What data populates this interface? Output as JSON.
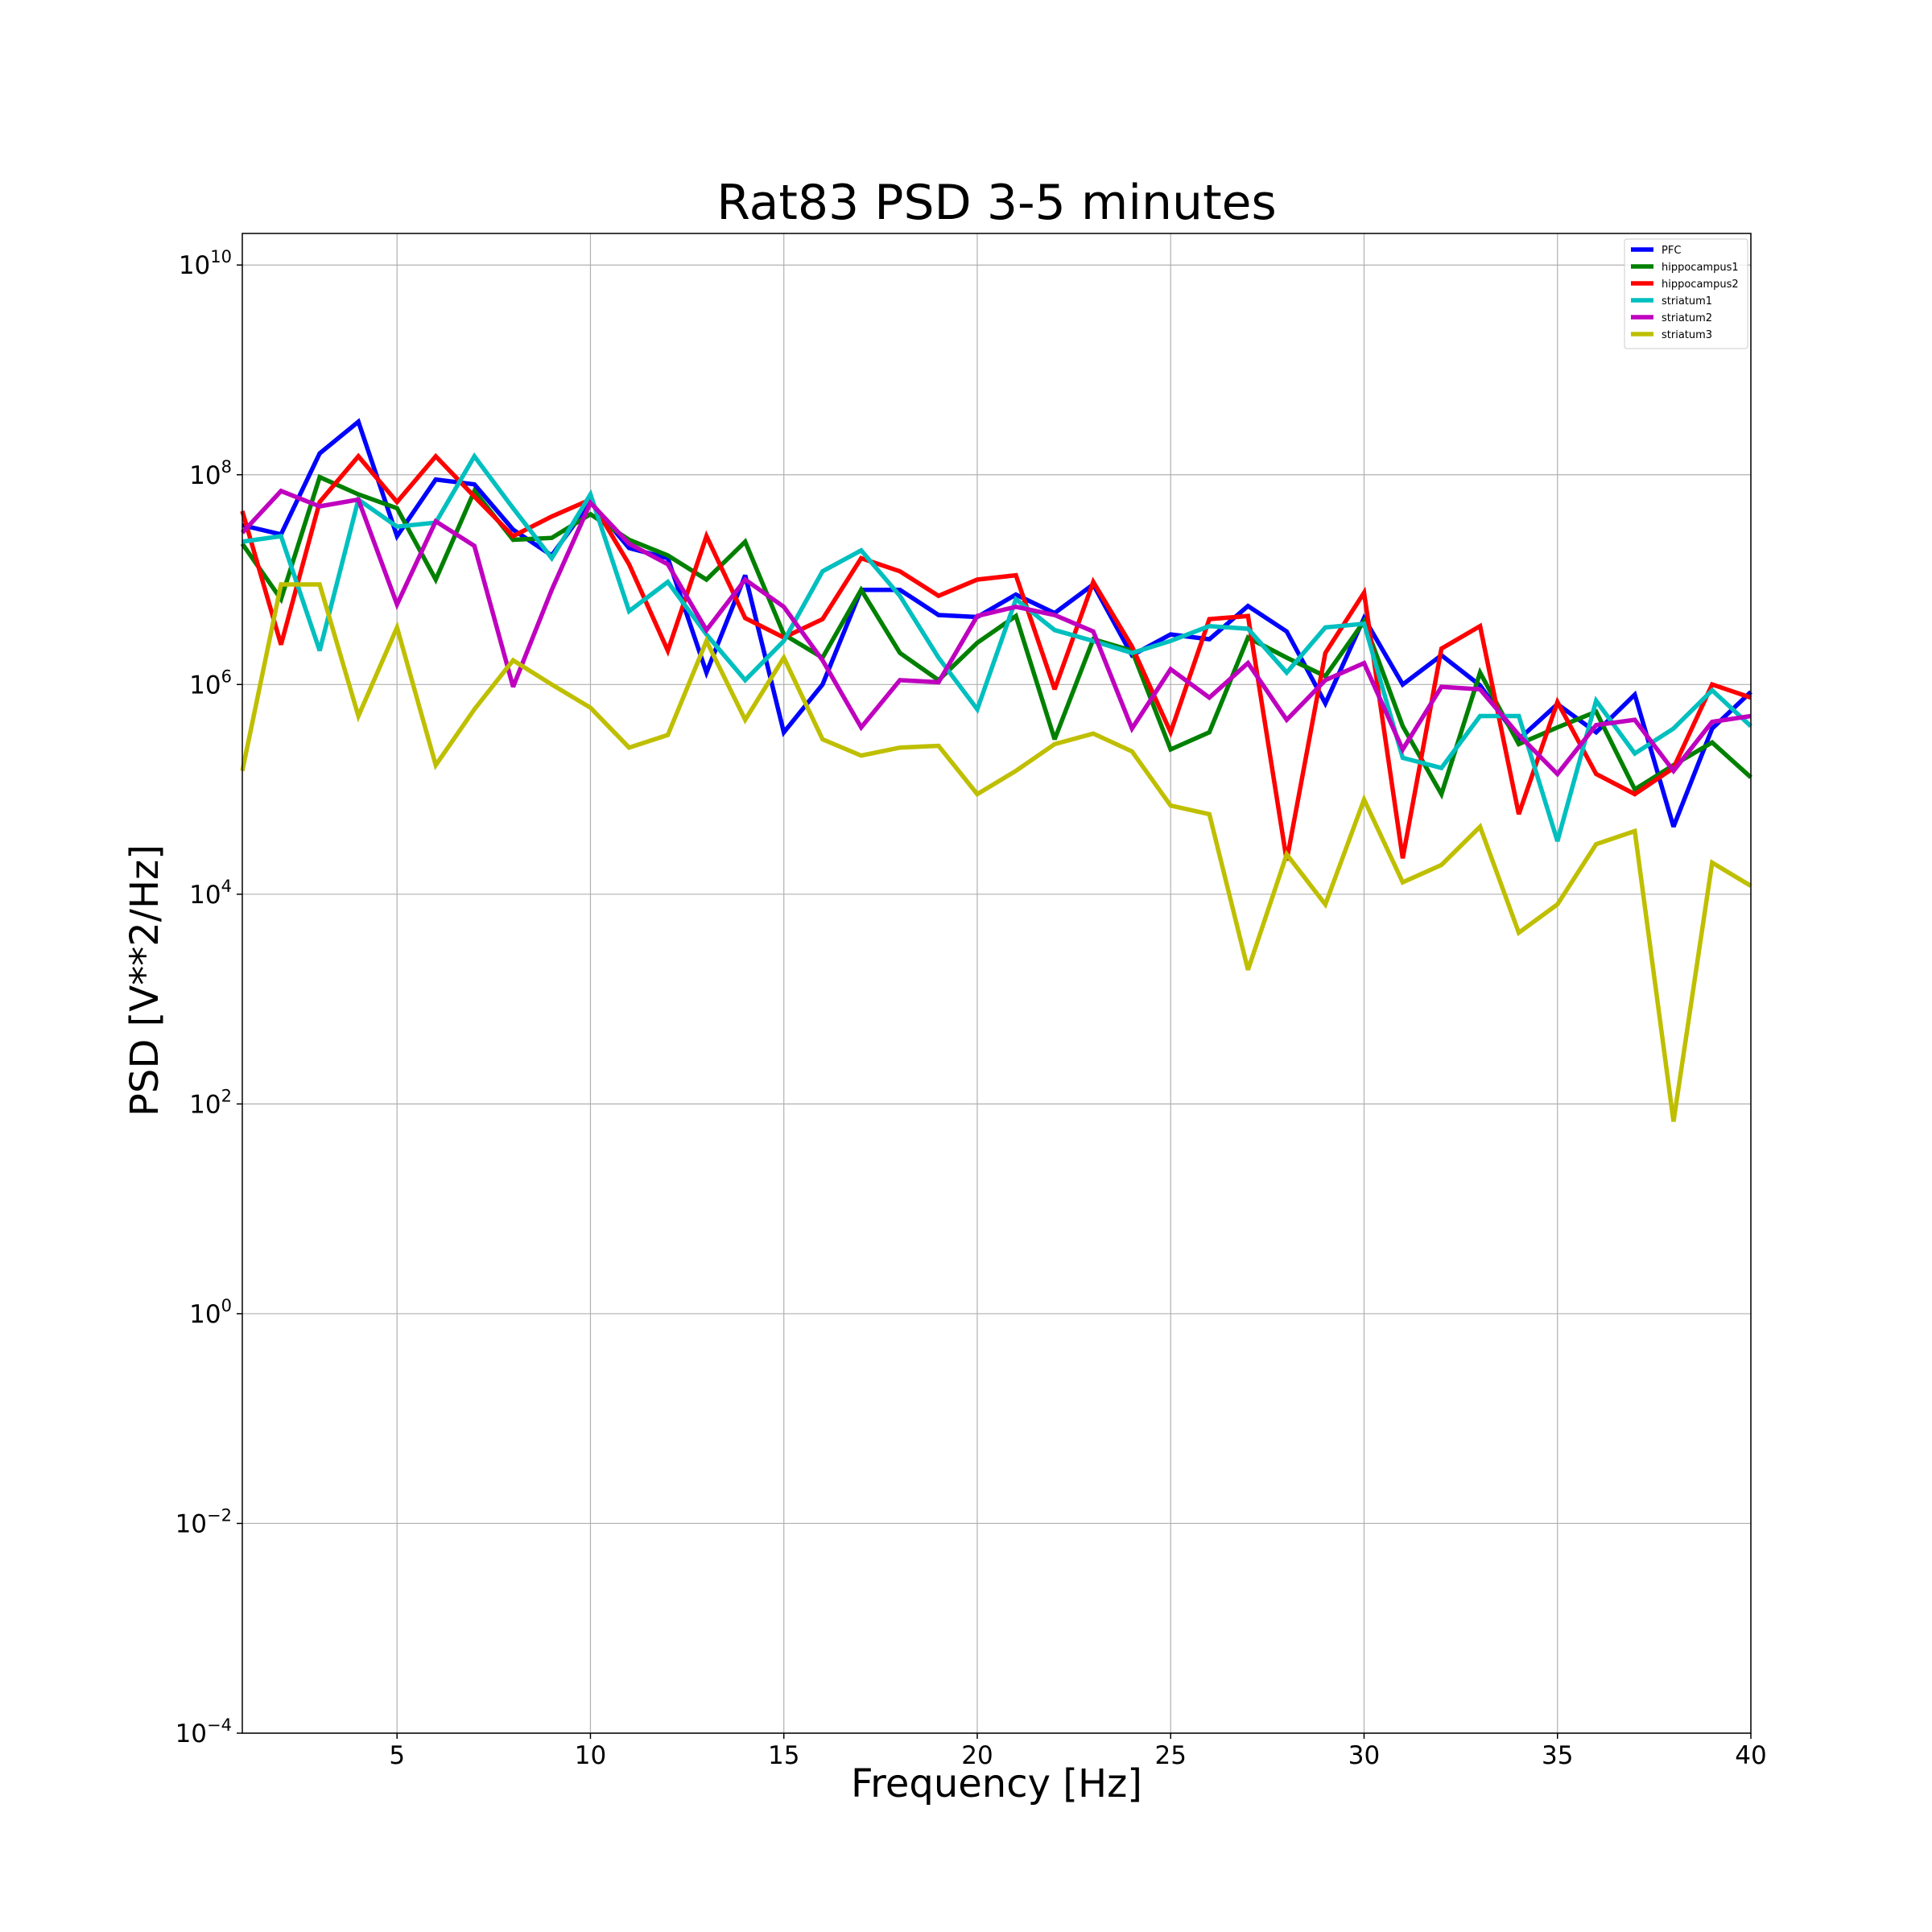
{
  "chart_data": {
    "type": "line",
    "title": "Rat83 PSD 3-5 minutes",
    "xlabel": "Frequency [Hz]",
    "ylabel": "PSD [V**2/Hz]",
    "xlim": [
      1,
      40
    ],
    "ylim": [
      0.0001,
      20000000000
    ],
    "yscale": "log",
    "grid": true,
    "legend_position": "top-right",
    "x_ticks": [
      5,
      10,
      15,
      20,
      25,
      30,
      35,
      40
    ],
    "y_ticks": [
      {
        "value": 10000000000.0,
        "base": "10",
        "exp": "10"
      },
      {
        "value": 100000000.0,
        "base": "10",
        "exp": "8"
      },
      {
        "value": 1000000.0,
        "base": "10",
        "exp": "6"
      },
      {
        "value": 10000.0,
        "base": "10",
        "exp": "4"
      },
      {
        "value": 100.0,
        "base": "10",
        "exp": "2"
      },
      {
        "value": 1,
        "base": "10",
        "exp": "0"
      },
      {
        "value": 0.01,
        "base": "10",
        "exp": "−2"
      },
      {
        "value": 0.0001,
        "base": "10",
        "exp": "−4"
      }
    ],
    "x": [
      1,
      2,
      3,
      4,
      5,
      6,
      7,
      8,
      9,
      10,
      11,
      12,
      13,
      14,
      15,
      16,
      17,
      18,
      19,
      20,
      21,
      22,
      23,
      24,
      25,
      26,
      27,
      28,
      29,
      30,
      31,
      32,
      33,
      34,
      35,
      36,
      37,
      38,
      39,
      40
    ],
    "series": [
      {
        "name": "PFC",
        "color": "#0000ff",
        "values": [
          33000000.0,
          27000000.0,
          160000000.0,
          320000000.0,
          26000000.0,
          90000000.0,
          81000000.0,
          30000000.0,
          17000000.0,
          55000000.0,
          20000000.0,
          16000000.0,
          1300000.0,
          11000000.0,
          350000.0,
          1000000.0,
          8000000.0,
          8000000.0,
          4600000.0,
          4400000.0,
          7200000.0,
          4800000.0,
          9000000.0,
          1900000.0,
          3000000.0,
          2700000.0,
          5600000.0,
          3200000.0,
          660000.0,
          4300000.0,
          1000000.0,
          1900000.0,
          980000.0,
          300000.0,
          650000.0,
          350000.0,
          800000.0,
          44000.0,
          380000.0,
          850000.0
        ]
      },
      {
        "name": "hippocampus1",
        "color": "#008000",
        "values": [
          22000000.0,
          6500000.0,
          95000000.0,
          65000000.0,
          48000000.0,
          10000000.0,
          70000000.0,
          24000000.0,
          25000000.0,
          42000000.0,
          24000000.0,
          17000000.0,
          10000000.0,
          23000000.0,
          3000000.0,
          1800000.0,
          8000000.0,
          2000000.0,
          1100000.0,
          2500000.0,
          4500000.0,
          300000.0,
          2700000.0,
          2100000.0,
          240000.0,
          350000.0,
          2800000.0,
          1800000.0,
          1200000.0,
          4000000.0,
          400000.0,
          90000.0,
          1300000.0,
          270000.0,
          390000.0,
          550000.0,
          100000.0,
          170000.0,
          280000.0,
          130000.0
        ]
      },
      {
        "name": "hippocampus2",
        "color": "#ff0000",
        "values": [
          45000000.0,
          2400000.0,
          55000000.0,
          150000000.0,
          55000000.0,
          150000000.0,
          62000000.0,
          26000000.0,
          40000000.0,
          58000000.0,
          14000000.0,
          2100000.0,
          26000000.0,
          4300000.0,
          2800000.0,
          4200000.0,
          16000000.0,
          12000000.0,
          7000000.0,
          10000000.0,
          11000000.0,
          900000.0,
          9500000.0,
          2300000.0,
          350000.0,
          4200000.0,
          4500000.0,
          21000.0,
          2000000.0,
          7500000.0,
          22000.0,
          2200000.0,
          3600000.0,
          58000.0,
          680000.0,
          140000.0,
          90000.0,
          160000.0,
          1000000.0,
          750000.0
        ]
      },
      {
        "name": "striatum1",
        "color": "#00bfbf",
        "values": [
          23000000.0,
          26000000.0,
          2100000.0,
          58000000.0,
          32000000.0,
          35000000.0,
          150000000.0,
          48000000.0,
          16000000.0,
          65000000.0,
          5000000.0,
          9500000.0,
          3000000.0,
          1100000.0,
          2600000.0,
          12000000.0,
          19000000.0,
          7000000.0,
          1800000.0,
          580000.0,
          6500000.0,
          3300000.0,
          2600000.0,
          2000000.0,
          2600000.0,
          3600000.0,
          3400000.0,
          1300000.0,
          3500000.0,
          3800000.0,
          200000.0,
          160000.0,
          500000.0,
          500000.0,
          32000.0,
          700000.0,
          220000.0,
          380000.0,
          880000.0,
          400000.0
        ]
      },
      {
        "name": "striatum2",
        "color": "#bf00bf",
        "values": [
          28000000.0,
          70000000.0,
          50000000.0,
          58000000.0,
          5800000.0,
          36000000.0,
          21000000.0,
          950000.0,
          8000000.0,
          54000000.0,
          22000000.0,
          14000000.0,
          3300000.0,
          10000000.0,
          5500000.0,
          1700000.0,
          390000.0,
          1100000.0,
          1050000.0,
          4500000.0,
          5500000.0,
          4600000.0,
          3200000.0,
          380000.0,
          1400000.0,
          750000.0,
          1600000.0,
          460000.0,
          1100000.0,
          1600000.0,
          240000.0,
          950000.0,
          900000.0,
          330000.0,
          140000.0,
          410000.0,
          460000.0,
          150000.0,
          440000.0,
          500000.0
        ]
      },
      {
        "name": "striatum3",
        "color": "#bfbf00",
        "values": [
          150000.0,
          9000000.0,
          9000000.0,
          500000.0,
          3500000.0,
          170000.0,
          580000.0,
          1700000.0,
          1000000.0,
          600000.0,
          250000.0,
          330000.0,
          2600000.0,
          460000.0,
          1800000.0,
          300000.0,
          210000.0,
          250000.0,
          260000.0,
          90000.0,
          150000.0,
          270000.0,
          340000.0,
          230000.0,
          70000.0,
          58000.0,
          1900.0,
          24000.0,
          8000.0,
          80000.0,
          13000.0,
          19000.0,
          44000.0,
          4300.0,
          8000.0,
          30000.0,
          40000.0,
          68.0,
          20000.0,
          12000.0
        ]
      }
    ]
  }
}
